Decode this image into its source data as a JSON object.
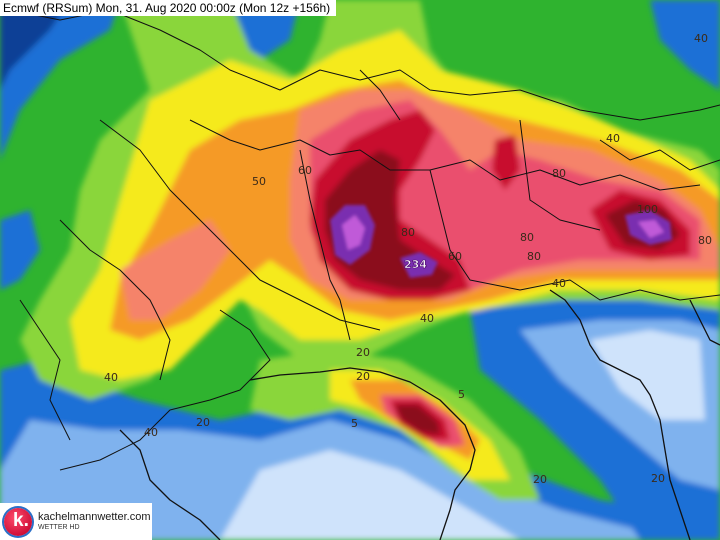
{
  "title": "Ecmwf (RRSum) Mon, 31. Aug 2020 00:00z (Mon 12z +156h)",
  "logo": {
    "name": "kachelmannwetter.com",
    "sub": "WETTER HD",
    "letter": "k."
  },
  "colors": {
    "deep_blue": "#0a3f96",
    "blue": "#1e6fd6",
    "light_blue": "#7fb2ee",
    "pale_blue": "#cfe3fb",
    "green": "#2fb32f",
    "light_green": "#8ad63a",
    "yellow": "#f5ea1e",
    "orange": "#f59a28",
    "salmon": "#f5836b",
    "pink": "#ea4f6e",
    "crimson": "#c8102e",
    "dark_red": "#8b0a1e",
    "purple": "#7a2fb0",
    "violet": "#c05ad8"
  },
  "contour_labels": [
    {
      "text": "40"
    },
    {
      "text": "50"
    },
    {
      "text": "60"
    },
    {
      "text": "80"
    },
    {
      "text": "60"
    },
    {
      "text": "40"
    },
    {
      "text": "80"
    },
    {
      "text": "80"
    },
    {
      "text": "80"
    },
    {
      "text": "100"
    },
    {
      "text": "80"
    },
    {
      "text": "40"
    },
    {
      "text": "40"
    },
    {
      "text": "40"
    },
    {
      "text": "40"
    },
    {
      "text": "20"
    },
    {
      "text": "20"
    },
    {
      "text": "5"
    },
    {
      "text": "5"
    },
    {
      "text": "20"
    },
    {
      "text": "20"
    },
    {
      "text": "20"
    }
  ],
  "peak_label": "234"
}
